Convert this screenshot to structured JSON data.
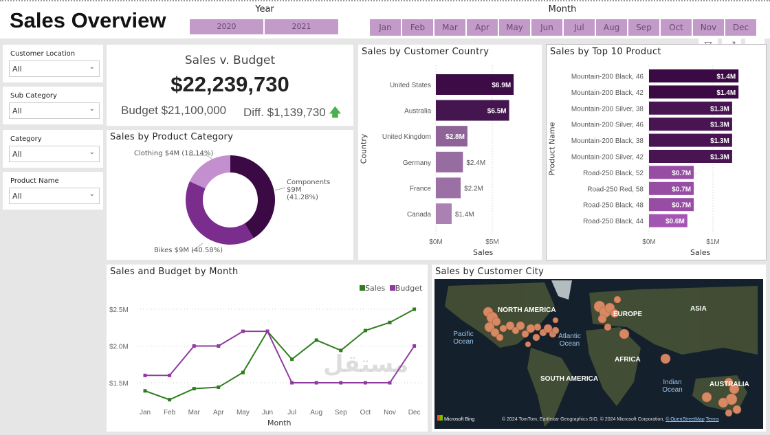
{
  "header": {
    "title": "Sales Overview",
    "year_label": "Year",
    "years": [
      "2020",
      "2021"
    ],
    "month_label": "Month",
    "months": [
      "Jan",
      "Feb",
      "Mar",
      "Apr",
      "May",
      "Jun",
      "Jul",
      "Aug",
      "Sep",
      "Oct",
      "Nov",
      "Dec"
    ],
    "tile_color": "#c39bc9"
  },
  "visual_header": {
    "icons": [
      "filter-icon",
      "focus-mode-icon",
      "more-options-icon"
    ],
    "more": "⋯"
  },
  "slicers": [
    {
      "label": "Customer Location",
      "value": "All"
    },
    {
      "label": "Sub Category",
      "value": "All"
    },
    {
      "label": "Category",
      "value": "All"
    },
    {
      "label": "Product Name",
      "value": "All"
    }
  ],
  "kpi": {
    "title": "Sales v. Budget",
    "value": "$22,239,730",
    "budget": "Budget $21,100,000",
    "diff": "Diff. $1,139,730",
    "trend": "up",
    "trend_color": "#4caf50"
  },
  "chart_data": [
    {
      "type": "pie",
      "title": "Sales by Product Category",
      "donut": true,
      "labels": [
        "Components",
        "Bikes",
        "Clothing"
      ],
      "values": [
        41.28,
        40.58,
        18.14
      ],
      "data_labels": [
        "Components $9M (41.28%)",
        "Bikes $9M (40.58%)",
        "Clothing $4M (18.14%)"
      ],
      "colors": [
        "#3b0a45",
        "#7b2d8e",
        "#c48fce"
      ]
    },
    {
      "type": "bar",
      "orientation": "horizontal",
      "title": "Sales by Customer Country",
      "xlabel": "Sales",
      "ylabel": "Country",
      "categories": [
        "United States",
        "Australia",
        "United Kingdom",
        "Germany",
        "France",
        "Canada"
      ],
      "values": [
        6.9,
        6.5,
        2.8,
        2.4,
        2.2,
        1.4
      ],
      "data_labels": [
        "$6.9M",
        "$6.5M",
        "$2.8M",
        "$2.4M",
        "$2.2M",
        "$1.4M"
      ],
      "xticks": [
        "$0M",
        "$5M"
      ],
      "xlim": [
        0,
        7.5
      ]
    },
    {
      "type": "bar",
      "orientation": "horizontal",
      "title": "Sales by Top 10 Product",
      "xlabel": "Sales",
      "ylabel": "Product Name",
      "categories": [
        "Mountain-200 Black, 46",
        "Mountain-200 Black, 42",
        "Mountain-200 Silver, 38",
        "Mountain-200 Silver, 46",
        "Mountain-200 Black, 38",
        "Mountain-200 Silver, 42",
        "Road-250 Black, 52",
        "Road-250 Red, 58",
        "Road-250 Black, 48",
        "Road-250 Black, 44"
      ],
      "values": [
        1.4,
        1.4,
        1.3,
        1.3,
        1.3,
        1.3,
        0.7,
        0.7,
        0.7,
        0.6
      ],
      "data_labels": [
        "$1.4M",
        "$1.4M",
        "$1.3M",
        "$1.3M",
        "$1.3M",
        "$1.3M",
        "$0.7M",
        "$0.7M",
        "$0.7M",
        "$0.6M"
      ],
      "xticks": [
        "$0M",
        "$1M"
      ],
      "xlim": [
        0,
        1.5
      ]
    },
    {
      "type": "line",
      "title": "Sales and Budget by Month",
      "xlabel": "Month",
      "categories": [
        "Jan",
        "Feb",
        "Mar",
        "Apr",
        "May",
        "Jun",
        "Jul",
        "Aug",
        "Sep",
        "Oct",
        "Nov",
        "Dec"
      ],
      "series": [
        {
          "name": "Sales",
          "color": "#2e7d1e",
          "values": [
            1.39,
            1.27,
            1.42,
            1.44,
            1.64,
            2.2,
            1.82,
            2.08,
            1.94,
            2.21,
            2.32,
            2.5
          ]
        },
        {
          "name": "Budget",
          "color": "#8e3a9e",
          "values": [
            1.6,
            1.6,
            2.0,
            2.0,
            2.2,
            2.2,
            1.5,
            1.5,
            1.5,
            1.5,
            1.5,
            2.0
          ]
        }
      ],
      "yticks": [
        "$1.5M",
        "$2.0M",
        "$2.5M"
      ],
      "ylim": [
        1.2,
        2.6
      ],
      "legend": "top-right",
      "grid": true
    }
  ],
  "map": {
    "title": "Sales by Customer City",
    "labels": [
      "NORTH AMERICA",
      "EUROPE",
      "ASIA",
      "AFRICA",
      "SOUTH AMERICA",
      "AUSTRALIA"
    ],
    "oceans": [
      "Pacific Ocean",
      "Atlantic Ocean",
      "Indian Ocean"
    ],
    "brand": "Microsoft Bing",
    "attribution": "© 2024 TomTom, Earthstar Geographics SIO, © 2024 Microsoft Corporation,",
    "osm": "© OpenStreetMap",
    "terms": "Terms",
    "bubble_color": "#e8906a"
  },
  "watermark": {
    "arabic": "مستقل",
    "latin": "mostaqi.com"
  }
}
